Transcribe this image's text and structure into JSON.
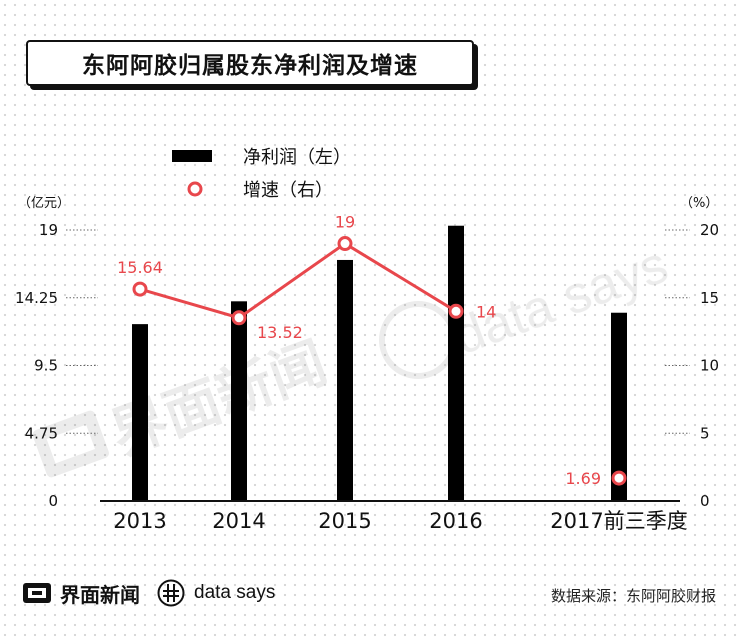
{
  "title": "东阿阿胶归属股东净利润及增速",
  "legend": {
    "bar_label": "净利润（左）",
    "line_label": "增速（右）"
  },
  "axes": {
    "left_unit": "（亿元）",
    "right_unit": "（%）",
    "left_ticks": [
      "19",
      "14.25",
      "9.5",
      "4.75",
      "0"
    ],
    "right_ticks": [
      "20",
      "15",
      "10",
      "5",
      "0"
    ]
  },
  "footer": {
    "brand_name": "界面新闻",
    "data_says": "data says",
    "source": "数据来源：东阿阿胶财报"
  },
  "watermark": {
    "brand": "界面新闻",
    "data_says": "data says"
  },
  "colors": {
    "bar": "#000000",
    "line": "#e8474c",
    "text": "#111111"
  },
  "chart_data": {
    "type": "bar",
    "categories": [
      "2013",
      "2014",
      "2015",
      "2016",
      "2017前三季度"
    ],
    "series": [
      {
        "name": "净利润（左）",
        "type": "bar",
        "axis": "left",
        "values": [
          12.4,
          14.0,
          16.9,
          19.3,
          13.2
        ]
      },
      {
        "name": "增速（右）",
        "type": "line",
        "axis": "right",
        "values": [
          15.64,
          13.52,
          19,
          14,
          1.69
        ],
        "labels": [
          "15.64",
          "13.52",
          "19",
          "14",
          "1.69"
        ],
        "connected_through": 3
      }
    ],
    "left_ylim": [
      0,
      19
    ],
    "right_ylim": [
      0,
      20
    ],
    "grid": false,
    "legend_position": "top-left"
  }
}
